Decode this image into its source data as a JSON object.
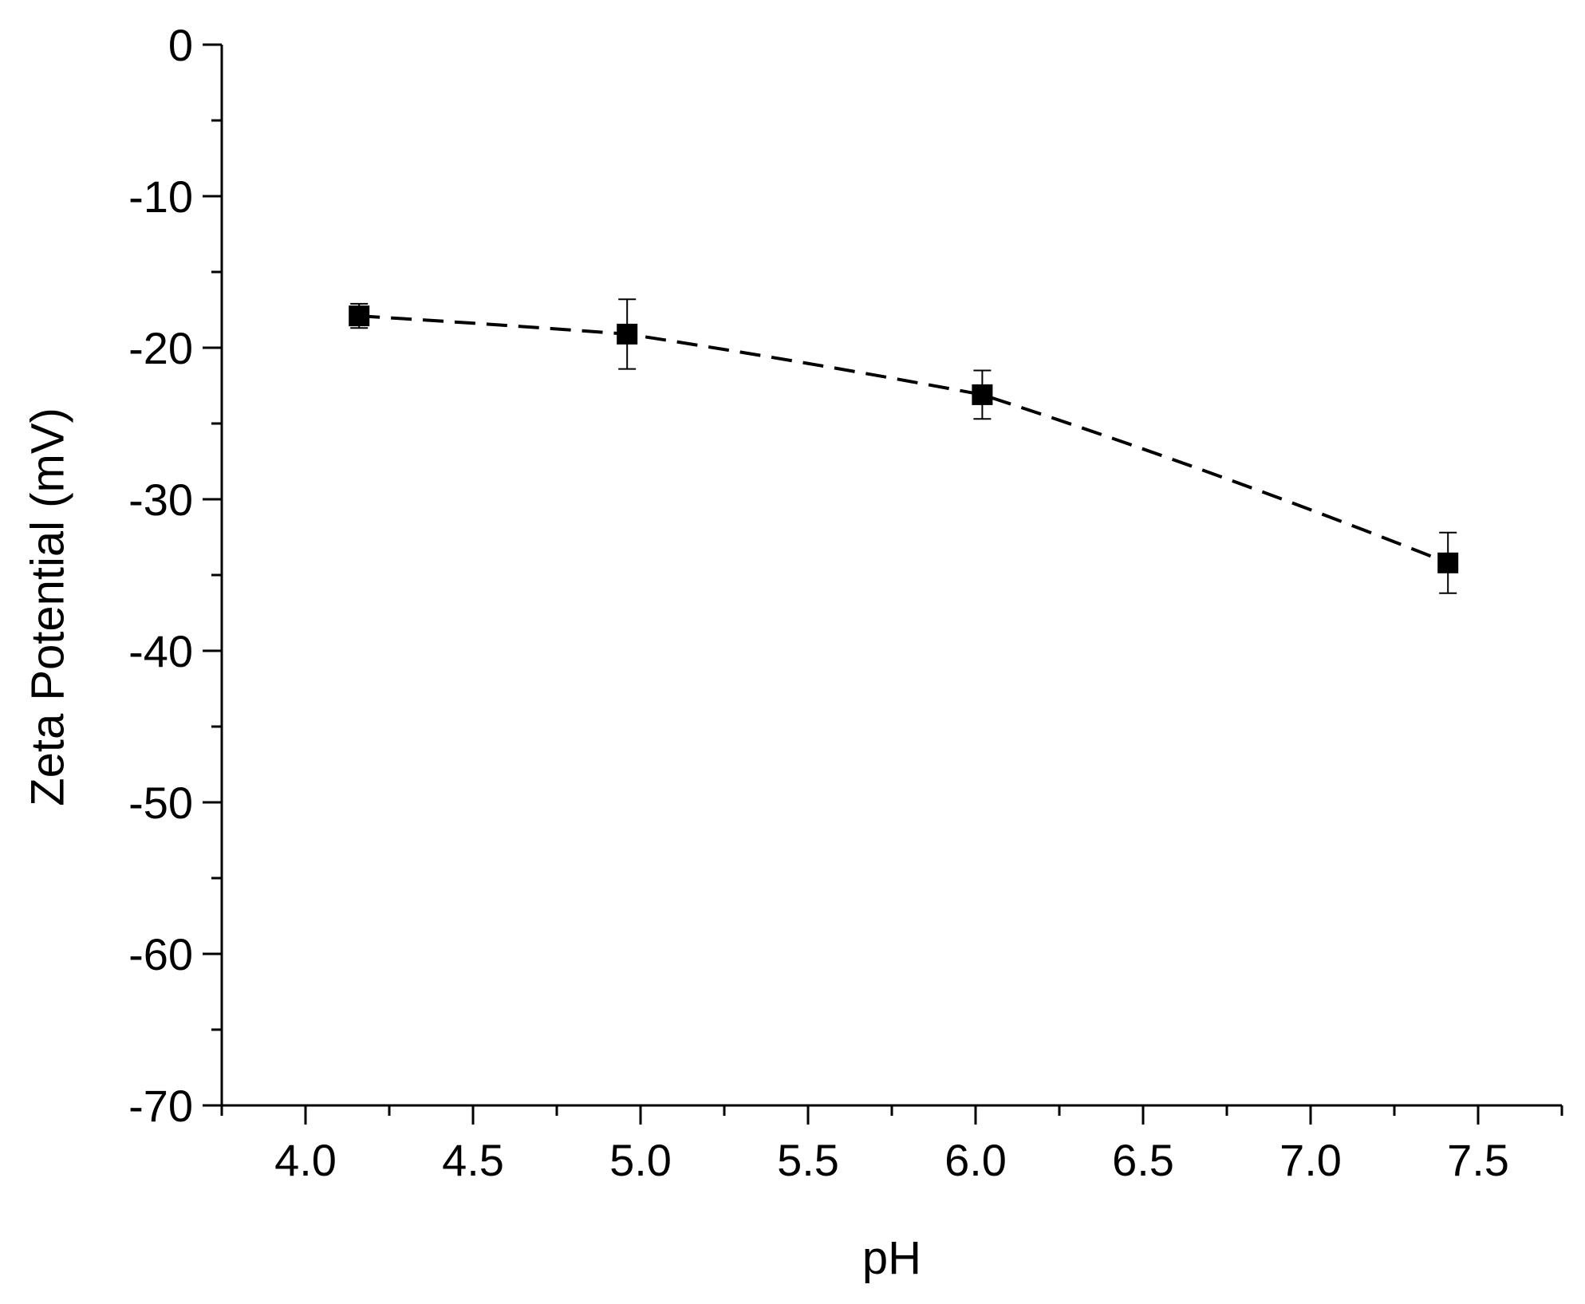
{
  "chart_data": {
    "type": "line",
    "title": "",
    "xlabel": "pH",
    "ylabel": "Zeta Potential (mV)",
    "xlim": [
      3.75,
      7.75
    ],
    "ylim": [
      -70,
      0
    ],
    "x_ticks": [
      4.0,
      4.5,
      5.0,
      5.5,
      6.0,
      6.5,
      7.0,
      7.5
    ],
    "x_tick_labels": [
      "4.0",
      "4.5",
      "5.0",
      "5.5",
      "6.0",
      "6.5",
      "7.0",
      "7.5"
    ],
    "y_ticks": [
      0,
      -10,
      -20,
      -30,
      -40,
      -50,
      -60,
      -70
    ],
    "y_tick_labels": [
      "0",
      "-10",
      "-20",
      "-30",
      "-40",
      "-50",
      "-60",
      "-70"
    ],
    "grid": false,
    "legend": "none",
    "series": [
      {
        "x": [
          4.16,
          4.96,
          6.02,
          7.41
        ],
        "y": [
          -17.9,
          -19.1,
          -23.1,
          -34.2
        ],
        "y_error": [
          0.8,
          2.3,
          1.6,
          2.0
        ],
        "marker": "square",
        "line_style": "dashed",
        "color": "#000000"
      }
    ]
  }
}
